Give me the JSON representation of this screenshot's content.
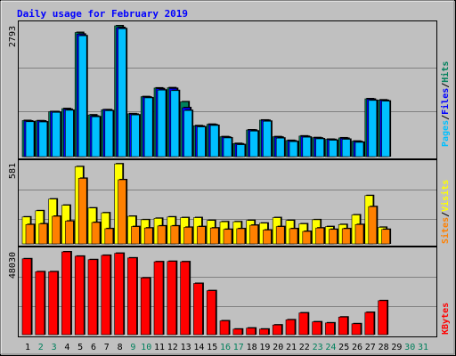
{
  "title": "Daily usage for February 2019",
  "colors": {
    "background": "#c0c0c0",
    "frame_bg": "#c0c0c0",
    "plot_bg": "#c0c0c0",
    "hits": "#00805c",
    "files": "#0000ff",
    "pages": "#00c0ff",
    "visits": "#ffff00",
    "sites": "#ff8000",
    "kbytes": "#ff0000",
    "title": "#0000ff",
    "weekday": "#000000",
    "weekend": "#00805c",
    "grid": "#808080"
  },
  "legend": {
    "top": {
      "pages": "Pages",
      "sep1": "/",
      "files": "Files",
      "sep2": "/",
      "hits": "Hits"
    },
    "mid": {
      "sites": "Sites",
      "sep": "/",
      "visits": "Visits"
    },
    "bottom": {
      "kbytes": "KBytes"
    }
  },
  "max_labels": {
    "top": "2793",
    "mid": "581",
    "bottom": "48030"
  },
  "chart_data": [
    {
      "type": "bar",
      "panel": "top",
      "categories": [
        "1",
        "2",
        "3",
        "4",
        "5",
        "6",
        "7",
        "8",
        "9",
        "10",
        "11",
        "12",
        "13",
        "14",
        "15",
        "16",
        "17",
        "18",
        "19",
        "20",
        "21",
        "22",
        "23",
        "24",
        "25",
        "26",
        "27",
        "28",
        "29",
        "30",
        "31"
      ],
      "ylim": [
        0,
        2793
      ],
      "series": [
        {
          "name": "Hits",
          "values": [
            770,
            765,
            960,
            1025,
            2650,
            890,
            1000,
            2793,
            915,
            1280,
            1465,
            1470,
            1170,
            660,
            690,
            425,
            280,
            570,
            780,
            425,
            345,
            440,
            405,
            370,
            400,
            330,
            1235,
            1210,
            0,
            0,
            0
          ]
        },
        {
          "name": "Files",
          "values": [
            760,
            760,
            960,
            1010,
            2615,
            865,
            1000,
            2755,
            905,
            1270,
            1450,
            1455,
            1045,
            650,
            680,
            415,
            270,
            565,
            775,
            415,
            335,
            430,
            395,
            365,
            390,
            320,
            1225,
            1200,
            0,
            0,
            0
          ]
        },
        {
          "name": "Pages",
          "values": [
            745,
            740,
            945,
            990,
            2580,
            850,
            980,
            2730,
            890,
            1255,
            1420,
            1410,
            985,
            635,
            665,
            400,
            255,
            545,
            755,
            395,
            320,
            415,
            380,
            350,
            370,
            305,
            1200,
            1185,
            0,
            0,
            0
          ]
        }
      ]
    },
    {
      "type": "bar",
      "panel": "middle",
      "categories": [
        "1",
        "2",
        "3",
        "4",
        "5",
        "6",
        "7",
        "8",
        "9",
        "10",
        "11",
        "12",
        "13",
        "14",
        "15",
        "16",
        "17",
        "18",
        "19",
        "20",
        "21",
        "22",
        "23",
        "24",
        "25",
        "26",
        "27",
        "28",
        "29",
        "30",
        "31"
      ],
      "ylim": [
        0,
        581
      ],
      "series": [
        {
          "name": "Visits",
          "values": [
            195,
            240,
            325,
            280,
            560,
            260,
            225,
            580,
            200,
            175,
            185,
            195,
            190,
            190,
            170,
            160,
            160,
            170,
            150,
            190,
            170,
            145,
            175,
            125,
            140,
            210,
            350,
            120,
            0,
            0,
            0
          ]
        },
        {
          "name": "Sites",
          "values": [
            140,
            145,
            200,
            165,
            475,
            155,
            110,
            465,
            125,
            115,
            130,
            130,
            120,
            125,
            115,
            105,
            110,
            135,
            100,
            125,
            110,
            90,
            115,
            105,
            110,
            140,
            270,
            105,
            0,
            0,
            0
          ]
        }
      ]
    },
    {
      "type": "bar",
      "panel": "bottom",
      "categories": [
        "1",
        "2",
        "3",
        "4",
        "5",
        "6",
        "7",
        "8",
        "9",
        "10",
        "11",
        "12",
        "13",
        "14",
        "15",
        "16",
        "17",
        "18",
        "19",
        "20",
        "21",
        "22",
        "23",
        "24",
        "25",
        "26",
        "27",
        "28",
        "29",
        "30",
        "31"
      ],
      "ylim": [
        0,
        48030
      ],
      "series": [
        {
          "name": "KBytes",
          "values": [
            44000,
            36500,
            36500,
            48030,
            45500,
            43500,
            46000,
            47200,
            44500,
            32900,
            42300,
            42500,
            42300,
            29700,
            25500,
            8000,
            3200,
            3800,
            3200,
            5600,
            8600,
            12600,
            7400,
            6800,
            10200,
            6300,
            12900,
            19700,
            0,
            0,
            0
          ]
        }
      ]
    }
  ]
}
